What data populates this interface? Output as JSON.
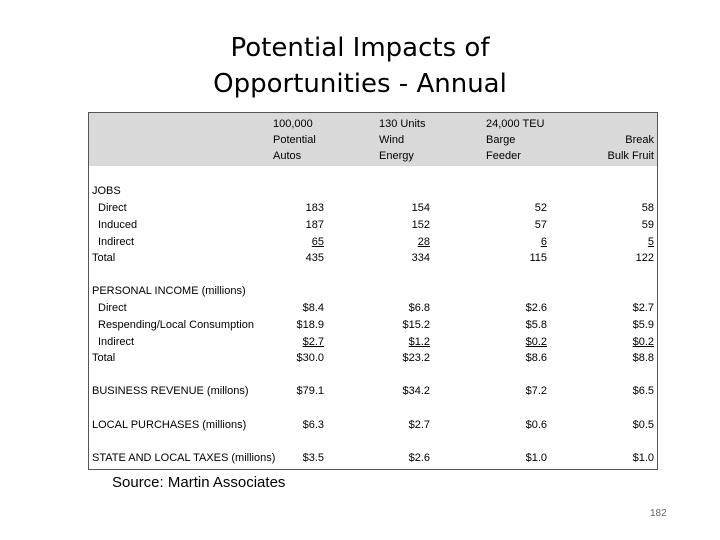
{
  "slide": {
    "title_line1": "Potential Impacts of",
    "title_line2": "Opportunities - Annual",
    "source": "Source: Martin Associates",
    "page_number": "182"
  },
  "columns": [
    [
      "100,000",
      "Potential",
      "Autos"
    ],
    [
      "130 Units",
      "Wind",
      "Energy"
    ],
    [
      "24,000 TEU",
      "Barge",
      "Feeder"
    ],
    [
      "Break",
      "Bulk Fruit"
    ]
  ],
  "sections": [
    {
      "header": "JOBS",
      "rows": [
        {
          "label": "Direct",
          "values": [
            "183",
            "154",
            "52",
            "58"
          ]
        },
        {
          "label": "Induced",
          "values": [
            "187",
            "152",
            "57",
            "59"
          ]
        },
        {
          "label": "Indirect",
          "values": [
            "65",
            "28",
            "6",
            "5"
          ]
        },
        {
          "label": "Total",
          "values": [
            "435",
            "334",
            "115",
            "122"
          ]
        }
      ]
    },
    {
      "header": "PERSONAL INCOME (millions)",
      "rows": [
        {
          "label": "Direct",
          "values": [
            "$8.4",
            "$6.8",
            "$2.6",
            "$2.7"
          ]
        },
        {
          "label": "Respending/Local Consumption",
          "values": [
            "$18.9",
            "$15.2",
            "$5.8",
            "$5.9"
          ]
        },
        {
          "label": "Indirect",
          "values": [
            "$2.7",
            "$1.2",
            "$0.2",
            "$0.2"
          ]
        },
        {
          "label": "Total",
          "values": [
            "$30.0",
            "$23.2",
            "$8.6",
            "$8.8"
          ]
        }
      ]
    },
    {
      "label": "BUSINESS REVENUE (millons)",
      "values": [
        "$79.1",
        "$34.2",
        "$7.2",
        "$6.5"
      ]
    },
    {
      "label": "LOCAL PURCHASES (millions)",
      "values": [
        "$6.3",
        "$2.7",
        "$0.6",
        "$0.5"
      ]
    },
    {
      "label": "STATE AND LOCAL TAXES (millions)",
      "values": [
        "$3.5",
        "$2.6",
        "$1.0",
        "$1.0"
      ]
    }
  ]
}
